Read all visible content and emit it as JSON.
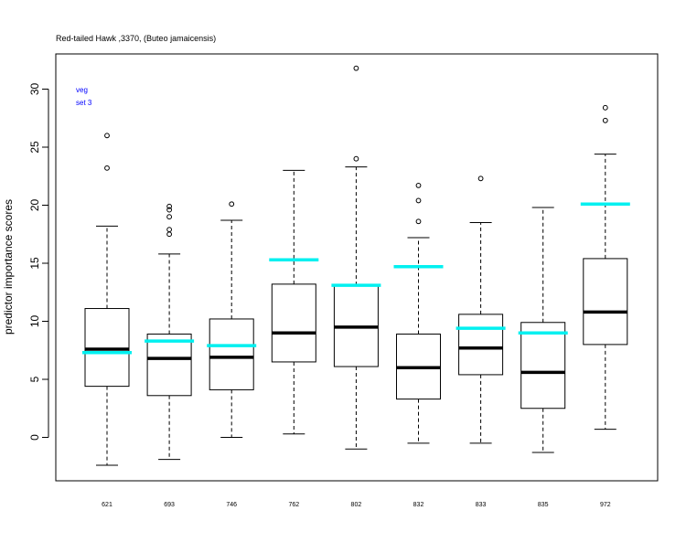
{
  "chart_data": {
    "type": "boxplot",
    "title": "Red-tailed Hawk ,3370, (Buteo jamaicensis)",
    "ylabel": "predictor importance scores",
    "xlabel": "",
    "ylim": [
      -3.8,
      33
    ],
    "yticks": [
      0,
      5,
      10,
      15,
      20,
      25,
      30
    ],
    "categories": [
      "621",
      "693",
      "746",
      "762",
      "802",
      "832",
      "833",
      "835",
      "972"
    ],
    "boxes": [
      {
        "whisker_low": -2.4,
        "q1": 4.4,
        "median": 7.6,
        "q3": 11.1,
        "whisker_high": 18.2,
        "outliers": [
          23.2,
          26.0
        ]
      },
      {
        "whisker_low": -1.9,
        "q1": 3.6,
        "median": 6.8,
        "q3": 8.9,
        "whisker_high": 15.8,
        "outliers": [
          17.5,
          17.9,
          19.0,
          19.6,
          19.9
        ]
      },
      {
        "whisker_low": 0.0,
        "q1": 4.1,
        "median": 6.9,
        "q3": 10.2,
        "whisker_high": 18.7,
        "outliers": [
          20.1
        ]
      },
      {
        "whisker_low": 0.3,
        "q1": 6.5,
        "median": 9.0,
        "q3": 13.2,
        "whisker_high": 23.0,
        "outliers": []
      },
      {
        "whisker_low": -1.0,
        "q1": 6.1,
        "median": 9.5,
        "q3": 13.1,
        "whisker_high": 23.3,
        "outliers": [
          24.0,
          31.8
        ]
      },
      {
        "whisker_low": -0.5,
        "q1": 3.3,
        "median": 6.0,
        "q3": 8.9,
        "whisker_high": 17.2,
        "outliers": [
          18.6,
          20.4,
          21.7
        ]
      },
      {
        "whisker_low": -0.5,
        "q1": 5.4,
        "median": 7.7,
        "q3": 10.6,
        "whisker_high": 18.5,
        "outliers": [
          22.3
        ]
      },
      {
        "whisker_low": -1.3,
        "q1": 2.5,
        "median": 5.6,
        "q3": 9.9,
        "whisker_high": 19.8,
        "outliers": []
      },
      {
        "whisker_low": 0.7,
        "q1": 8.0,
        "median": 10.8,
        "q3": 15.4,
        "whisker_high": 24.4,
        "outliers": [
          27.3,
          28.4
        ]
      }
    ],
    "reference_values": [
      7.3,
      8.3,
      7.9,
      15.3,
      13.1,
      14.7,
      9.4,
      9.0,
      20.1
    ],
    "reference_color": "#00f0f0",
    "legend": [
      "veg",
      "set 3"
    ],
    "legend_color": "#0000ff",
    "legend_position": "top-left",
    "grid": false
  }
}
